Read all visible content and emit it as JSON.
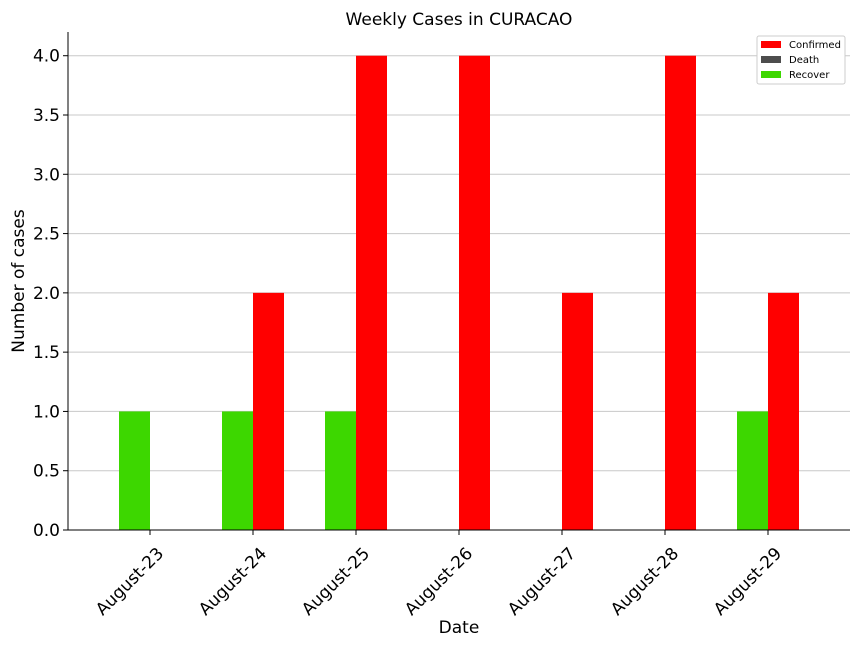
{
  "chart_data": {
    "type": "bar",
    "title": "Weekly Cases in CURACAO",
    "xlabel": "Date",
    "ylabel": "Number of cases",
    "categories": [
      "August-23",
      "August-24",
      "August-25",
      "August-26",
      "August-27",
      "August-28",
      "August-29"
    ],
    "series": [
      {
        "name": "Confirmed",
        "color": "#ff0000",
        "values": [
          0,
          2,
          4,
          4,
          2,
          4,
          2
        ]
      },
      {
        "name": "Death",
        "color": "#4d4d4d",
        "values": [
          0,
          0,
          0,
          0,
          0,
          0,
          0
        ]
      },
      {
        "name": "Recover",
        "color": "#3dd700",
        "values": [
          1,
          1,
          1,
          0,
          0,
          0,
          1
        ]
      }
    ],
    "ylim": [
      0,
      4.2
    ],
    "yticks": [
      "0.0",
      "0.5",
      "1.0",
      "1.5",
      "2.0",
      "2.5",
      "3.0",
      "3.5",
      "4.0"
    ],
    "grid": "horizontal",
    "legend_position": "top-right"
  }
}
